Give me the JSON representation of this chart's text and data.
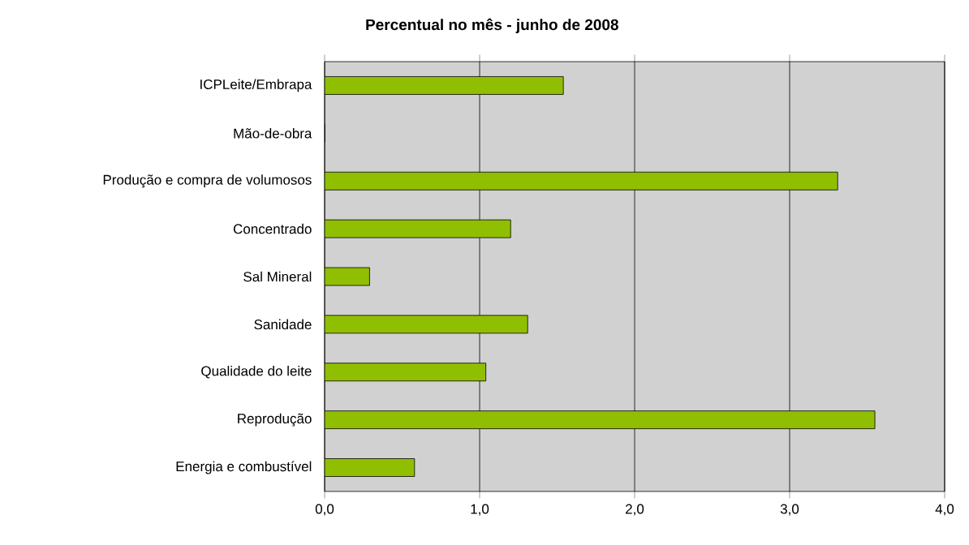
{
  "chart_data": {
    "type": "bar",
    "orientation": "horizontal",
    "title": "Percentual no mês - junho de 2008",
    "categories": [
      "ICPLeite/Embrapa",
      "Mão-de-obra",
      "Produção e compra de volumosos",
      "Concentrado",
      "Sal Mineral",
      "Sanidade",
      "Qualidade do leite",
      "Reprodução",
      "Energia e combustível"
    ],
    "values": [
      1.54,
      0,
      3.31,
      1.2,
      0.29,
      1.31,
      1.04,
      3.55,
      0.58
    ],
    "color": "#8fbf00",
    "xlim": [
      0,
      4
    ],
    "xticks": [
      {
        "value": 0,
        "label": "0,0"
      },
      {
        "value": 1,
        "label": "1,0"
      },
      {
        "value": 2,
        "label": "2,0"
      },
      {
        "value": 3,
        "label": "3,0"
      },
      {
        "value": 4,
        "label": "4,0"
      }
    ],
    "grid": "x"
  }
}
